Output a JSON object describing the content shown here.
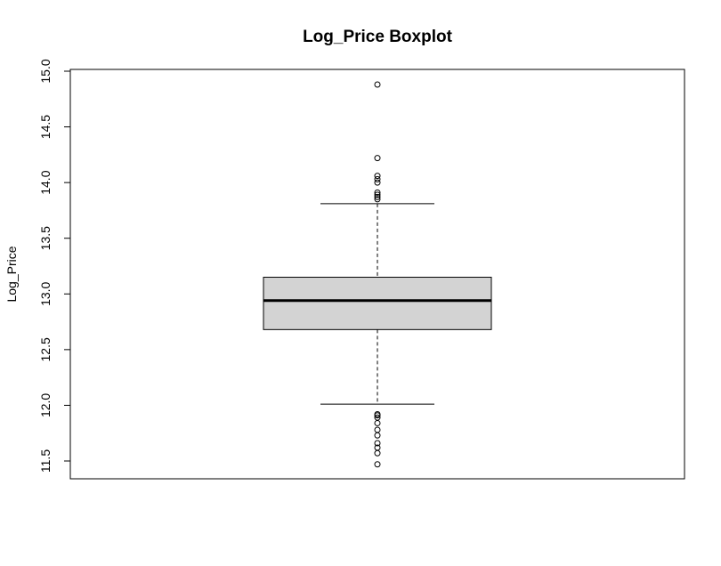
{
  "chart_data": {
    "type": "boxplot",
    "title": "Log_Price Boxplot",
    "xlabel": "",
    "ylabel": "Log_Price",
    "ylim": [
      11.33,
      15.02
    ],
    "yticks": [
      11.5,
      12.0,
      12.5,
      13.0,
      13.5,
      14.0,
      14.5,
      15.0
    ],
    "ytick_labels": [
      "11.5",
      "12.0",
      "12.5",
      "13.0",
      "13.5",
      "14.0",
      "14.5",
      "15.0"
    ],
    "grid": false,
    "box": {
      "lower_whisker": 12.01,
      "q1": 12.68,
      "median": 12.94,
      "q3": 13.15,
      "upper_whisker": 13.81
    },
    "outliers": [
      14.88,
      14.22,
      14.06,
      14.03,
      14.0,
      13.91,
      13.89,
      13.87,
      13.85,
      11.92,
      11.91,
      11.89,
      11.84,
      11.78,
      11.73,
      11.66,
      11.62,
      11.57,
      11.47
    ],
    "colors": {
      "box_fill": "#d3d3d3",
      "stroke": "#000000",
      "background": "#ffffff"
    }
  }
}
